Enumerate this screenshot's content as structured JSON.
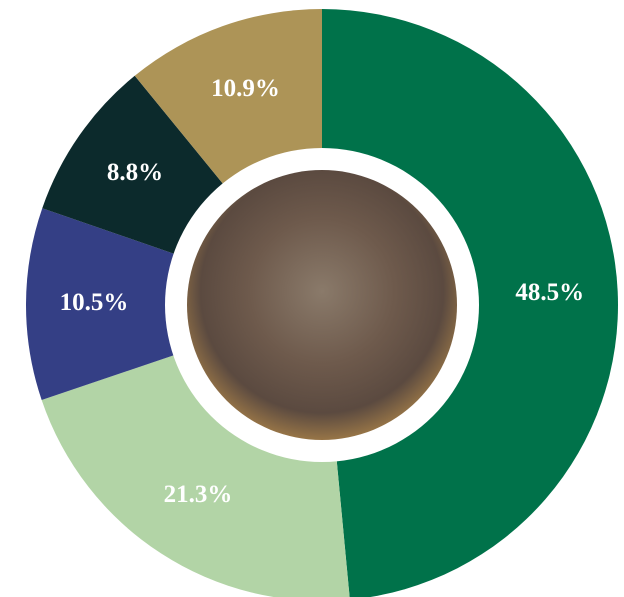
{
  "chart_data": {
    "type": "pie",
    "donut": true,
    "values": [
      48.5,
      21.3,
      10.5,
      8.8,
      10.9
    ],
    "value_labels": [
      "48.5%",
      "21.3%",
      "10.5%",
      "8.8%",
      "10.9%"
    ],
    "colors": [
      "#00724a",
      "#b2d4a6",
      "#343f85",
      "#0c2a2c",
      "#ad9457"
    ]
  }
}
